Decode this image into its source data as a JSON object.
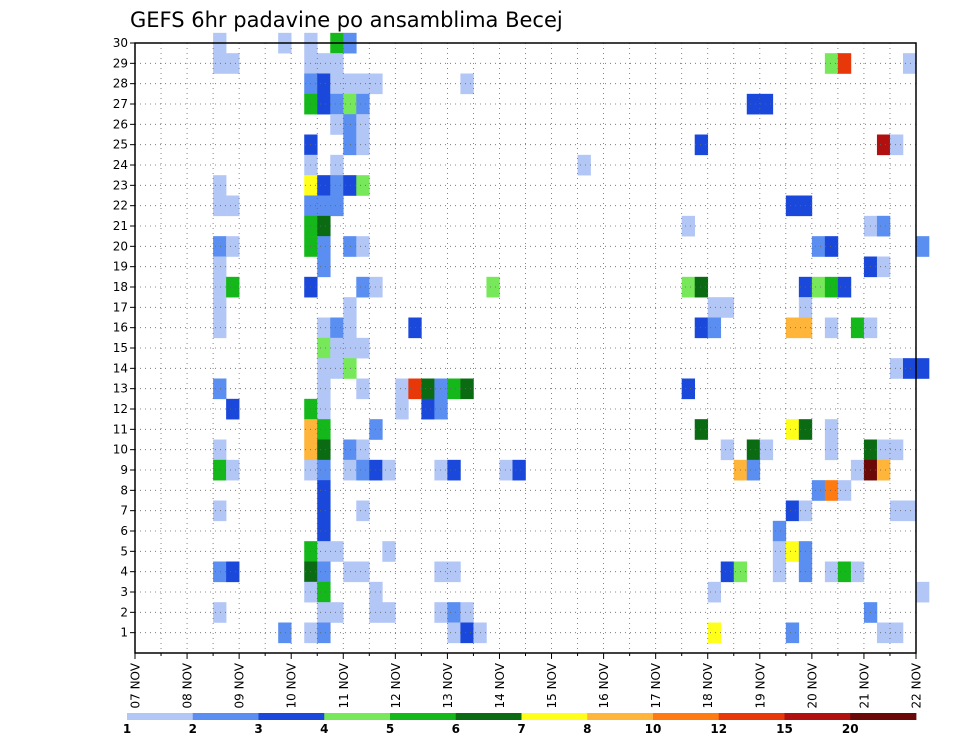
{
  "chart_data": {
    "type": "heatmap",
    "title": "GEFS 6hr padavine po ansamblima Becej",
    "xlabel": "",
    "ylabel": "",
    "x_tick_labels": [
      "07 NOV",
      "08 NOV",
      "09 NOV",
      "10 NOV",
      "11 NOV",
      "12 NOV",
      "13 NOV",
      "14 NOV",
      "15 NOV",
      "16 NOV",
      "17 NOV",
      "18 NOV",
      "19 NOV",
      "20 NOV",
      "21 NOV",
      "22 NOV"
    ],
    "y_tick_labels": [
      "1",
      "2",
      "3",
      "4",
      "5",
      "6",
      "7",
      "8",
      "9",
      "10",
      "11",
      "12",
      "13",
      "14",
      "15",
      "16",
      "17",
      "18",
      "19",
      "20",
      "21",
      "22",
      "23",
      "24",
      "25",
      "26",
      "27",
      "28",
      "29",
      "30"
    ],
    "x_range_days": [
      0,
      15
    ],
    "y_range_members": [
      0,
      30
    ],
    "colorbar": {
      "bounds": [
        "1",
        "2",
        "3",
        "4",
        "5",
        "6",
        "7",
        "8",
        "10",
        "12",
        "15",
        "20"
      ],
      "colors": [
        "#b3c7f7",
        "#5a8ef0",
        "#1a48db",
        "#76e85a",
        "#15b81a",
        "#0b6b12",
        "#ffff1a",
        "#ffb43a",
        "#ff7a10",
        "#e8380a",
        "#b01010",
        "#6b0808"
      ]
    },
    "cells_note": "each cell = [member, time step (6-hourly index from 07 NOV 00z), colour class 0-11]",
    "cells": [
      [
        30,
        6,
        0
      ],
      [
        30,
        11,
        0
      ],
      [
        30,
        13,
        0
      ],
      [
        30,
        15,
        4
      ],
      [
        30,
        16,
        1
      ],
      [
        29,
        6,
        0
      ],
      [
        29,
        7,
        0
      ],
      [
        29,
        13,
        0
      ],
      [
        29,
        14,
        0
      ],
      [
        29,
        15,
        0
      ],
      [
        29,
        53,
        3
      ],
      [
        29,
        54,
        9
      ],
      [
        29,
        59,
        0
      ],
      [
        28,
        13,
        1
      ],
      [
        28,
        14,
        2
      ],
      [
        28,
        15,
        0
      ],
      [
        28,
        16,
        0
      ],
      [
        28,
        17,
        0
      ],
      [
        28,
        18,
        0
      ],
      [
        28,
        25,
        0
      ],
      [
        27,
        13,
        4
      ],
      [
        27,
        14,
        2
      ],
      [
        27,
        15,
        1
      ],
      [
        27,
        16,
        3
      ],
      [
        27,
        17,
        1
      ],
      [
        27,
        47,
        2
      ],
      [
        27,
        48,
        2
      ],
      [
        26,
        15,
        0
      ],
      [
        26,
        16,
        1
      ],
      [
        26,
        17,
        0
      ],
      [
        25,
        13,
        2
      ],
      [
        25,
        16,
        1
      ],
      [
        25,
        17,
        0
      ],
      [
        25,
        43,
        2
      ],
      [
        25,
        57,
        10
      ],
      [
        25,
        58,
        0
      ],
      [
        24,
        13,
        0
      ],
      [
        24,
        15,
        0
      ],
      [
        24,
        34,
        0
      ],
      [
        23,
        6,
        0
      ],
      [
        23,
        13,
        6
      ],
      [
        23,
        14,
        2
      ],
      [
        23,
        15,
        1
      ],
      [
        23,
        16,
        2
      ],
      [
        23,
        17,
        3
      ],
      [
        22,
        6,
        0
      ],
      [
        22,
        7,
        0
      ],
      [
        22,
        13,
        1
      ],
      [
        22,
        14,
        1
      ],
      [
        22,
        15,
        1
      ],
      [
        22,
        50,
        2
      ],
      [
        22,
        51,
        2
      ],
      [
        21,
        13,
        4
      ],
      [
        21,
        14,
        5
      ],
      [
        21,
        42,
        0
      ],
      [
        21,
        56,
        0
      ],
      [
        21,
        57,
        1
      ],
      [
        20,
        6,
        1
      ],
      [
        20,
        7,
        0
      ],
      [
        20,
        13,
        4
      ],
      [
        20,
        14,
        1
      ],
      [
        20,
        16,
        1
      ],
      [
        20,
        17,
        0
      ],
      [
        20,
        52,
        1
      ],
      [
        20,
        53,
        2
      ],
      [
        20,
        60,
        1
      ],
      [
        19,
        6,
        0
      ],
      [
        19,
        14,
        1
      ],
      [
        19,
        56,
        2
      ],
      [
        19,
        57,
        0
      ],
      [
        18,
        6,
        0
      ],
      [
        18,
        7,
        4
      ],
      [
        18,
        13,
        2
      ],
      [
        18,
        17,
        1
      ],
      [
        18,
        18,
        0
      ],
      [
        18,
        27,
        3
      ],
      [
        18,
        42,
        3
      ],
      [
        18,
        43,
        5
      ],
      [
        18,
        51,
        2
      ],
      [
        18,
        52,
        3
      ],
      [
        18,
        53,
        4
      ],
      [
        18,
        54,
        2
      ],
      [
        17,
        6,
        0
      ],
      [
        17,
        16,
        0
      ],
      [
        17,
        44,
        0
      ],
      [
        17,
        45,
        0
      ],
      [
        17,
        51,
        0
      ],
      [
        16,
        6,
        0
      ],
      [
        16,
        14,
        0
      ],
      [
        16,
        15,
        1
      ],
      [
        16,
        16,
        0
      ],
      [
        16,
        21,
        2
      ],
      [
        16,
        43,
        2
      ],
      [
        16,
        44,
        1
      ],
      [
        16,
        50,
        7
      ],
      [
        16,
        51,
        7
      ],
      [
        16,
        53,
        0
      ],
      [
        16,
        55,
        4
      ],
      [
        16,
        56,
        0
      ],
      [
        15,
        14,
        3
      ],
      [
        15,
        15,
        0
      ],
      [
        15,
        16,
        0
      ],
      [
        15,
        17,
        0
      ],
      [
        14,
        14,
        0
      ],
      [
        14,
        15,
        0
      ],
      [
        14,
        16,
        3
      ],
      [
        14,
        58,
        0
      ],
      [
        14,
        59,
        2
      ],
      [
        14,
        60,
        2
      ],
      [
        13,
        6,
        1
      ],
      [
        13,
        14,
        0
      ],
      [
        13,
        17,
        0
      ],
      [
        13,
        20,
        0
      ],
      [
        13,
        21,
        9
      ],
      [
        13,
        22,
        5
      ],
      [
        13,
        23,
        1
      ],
      [
        13,
        24,
        4
      ],
      [
        13,
        25,
        5
      ],
      [
        13,
        42,
        2
      ],
      [
        12,
        7,
        2
      ],
      [
        12,
        13,
        4
      ],
      [
        12,
        14,
        0
      ],
      [
        12,
        20,
        0
      ],
      [
        12,
        22,
        2
      ],
      [
        12,
        23,
        1
      ],
      [
        11,
        13,
        7
      ],
      [
        11,
        14,
        4
      ],
      [
        11,
        18,
        1
      ],
      [
        11,
        43,
        5
      ],
      [
        11,
        50,
        6
      ],
      [
        11,
        51,
        5
      ],
      [
        11,
        53,
        0
      ],
      [
        10,
        6,
        0
      ],
      [
        10,
        13,
        7
      ],
      [
        10,
        14,
        5
      ],
      [
        10,
        16,
        1
      ],
      [
        10,
        17,
        0
      ],
      [
        10,
        45,
        0
      ],
      [
        10,
        47,
        5
      ],
      [
        10,
        48,
        0
      ],
      [
        10,
        53,
        0
      ],
      [
        10,
        56,
        5
      ],
      [
        10,
        57,
        0
      ],
      [
        10,
        58,
        0
      ],
      [
        9,
        6,
        4
      ],
      [
        9,
        7,
        0
      ],
      [
        9,
        13,
        0
      ],
      [
        9,
        14,
        1
      ],
      [
        9,
        16,
        0
      ],
      [
        9,
        17,
        1
      ],
      [
        9,
        18,
        2
      ],
      [
        9,
        19,
        0
      ],
      [
        9,
        23,
        0
      ],
      [
        9,
        24,
        2
      ],
      [
        9,
        28,
        0
      ],
      [
        9,
        29,
        2
      ],
      [
        9,
        46,
        7
      ],
      [
        9,
        47,
        1
      ],
      [
        9,
        55,
        0
      ],
      [
        9,
        56,
        11
      ],
      [
        9,
        57,
        7
      ],
      [
        8,
        14,
        2
      ],
      [
        8,
        52,
        1
      ],
      [
        8,
        53,
        8
      ],
      [
        8,
        54,
        0
      ],
      [
        7,
        6,
        0
      ],
      [
        7,
        14,
        2
      ],
      [
        7,
        17,
        0
      ],
      [
        7,
        50,
        2
      ],
      [
        7,
        51,
        0
      ],
      [
        7,
        58,
        0
      ],
      [
        7,
        59,
        0
      ],
      [
        6,
        14,
        2
      ],
      [
        6,
        49,
        1
      ],
      [
        5,
        13,
        4
      ],
      [
        5,
        14,
        0
      ],
      [
        5,
        15,
        0
      ],
      [
        5,
        19,
        0
      ],
      [
        5,
        49,
        0
      ],
      [
        5,
        50,
        6
      ],
      [
        5,
        51,
        1
      ],
      [
        4,
        6,
        1
      ],
      [
        4,
        7,
        2
      ],
      [
        4,
        13,
        5
      ],
      [
        4,
        14,
        1
      ],
      [
        4,
        16,
        0
      ],
      [
        4,
        17,
        0
      ],
      [
        4,
        23,
        0
      ],
      [
        4,
        24,
        0
      ],
      [
        4,
        45,
        2
      ],
      [
        4,
        46,
        3
      ],
      [
        4,
        49,
        0
      ],
      [
        4,
        51,
        1
      ],
      [
        4,
        53,
        0
      ],
      [
        4,
        54,
        4
      ],
      [
        4,
        55,
        0
      ],
      [
        3,
        13,
        0
      ],
      [
        3,
        14,
        4
      ],
      [
        3,
        18,
        0
      ],
      [
        3,
        44,
        0
      ],
      [
        3,
        60,
        0
      ],
      [
        2,
        6,
        0
      ],
      [
        2,
        14,
        0
      ],
      [
        2,
        15,
        0
      ],
      [
        2,
        18,
        0
      ],
      [
        2,
        19,
        0
      ],
      [
        2,
        23,
        0
      ],
      [
        2,
        24,
        1
      ],
      [
        2,
        25,
        0
      ],
      [
        2,
        56,
        1
      ],
      [
        1,
        11,
        1
      ],
      [
        1,
        13,
        0
      ],
      [
        1,
        14,
        1
      ],
      [
        1,
        24,
        0
      ],
      [
        1,
        25,
        2
      ],
      [
        1,
        26,
        0
      ],
      [
        1,
        44,
        6
      ],
      [
        1,
        50,
        1
      ],
      [
        1,
        57,
        0
      ],
      [
        1,
        58,
        0
      ]
    ]
  }
}
